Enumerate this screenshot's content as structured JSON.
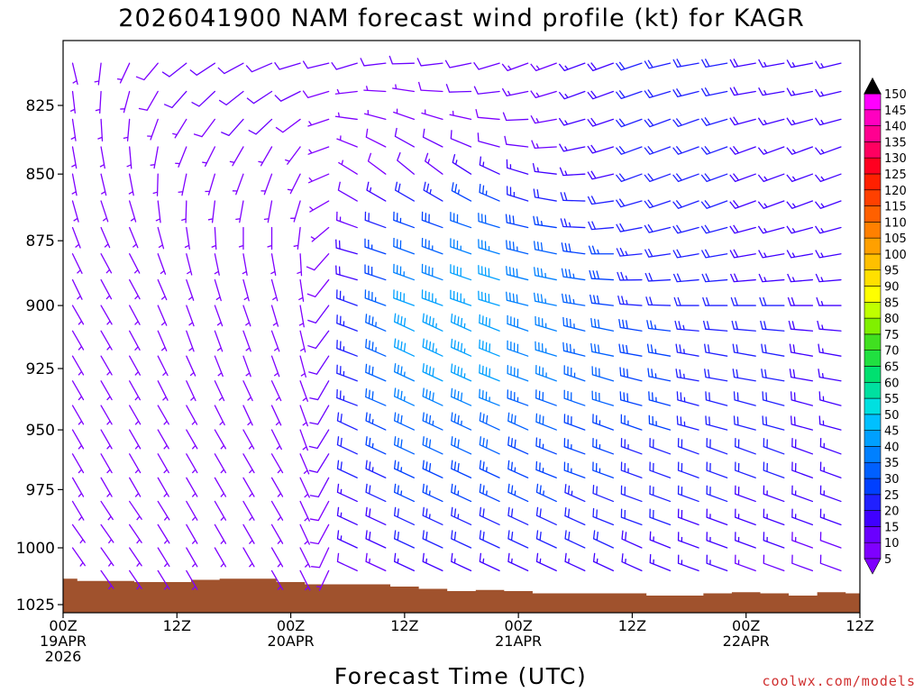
{
  "chart_data": {
    "type": "wind-barb-profile",
    "title": "2026041900 NAM forecast wind profile (kt) for KAGR",
    "xlabel": "Forecast Time (UTC)",
    "ylabel": "",
    "credit": "coolwx.com/models",
    "y_axis": {
      "unit": "hPa",
      "range": [
        1027,
        805
      ],
      "ticks": [
        825,
        850,
        875,
        900,
        925,
        950,
        975,
        1000,
        1025
      ],
      "tick_labels": [
        "825",
        "850",
        "875",
        "900",
        "925",
        "950",
        "975",
        "1000",
        "1025"
      ]
    },
    "x_axis": {
      "unit": "forecast hours",
      "range": [
        0,
        84
      ],
      "ticks": [
        {
          "hour": 0,
          "line1": "00Z",
          "line2": "19APR",
          "line3": "2026"
        },
        {
          "hour": 12,
          "line1": "12Z",
          "line2": "",
          "line3": ""
        },
        {
          "hour": 24,
          "line1": "00Z",
          "line2": "20APR",
          "line3": ""
        },
        {
          "hour": 36,
          "line1": "12Z",
          "line2": "",
          "line3": ""
        },
        {
          "hour": 48,
          "line1": "00Z",
          "line2": "21APR",
          "line3": ""
        },
        {
          "hour": 60,
          "line1": "12Z",
          "line2": "",
          "line3": ""
        },
        {
          "hour": 72,
          "line1": "00Z",
          "line2": "22APR",
          "line3": ""
        },
        {
          "hour": 84,
          "line1": "12Z",
          "line2": "",
          "line3": ""
        }
      ]
    },
    "surface_pressure": {
      "hours": [
        0,
        3,
        6,
        9,
        12,
        15,
        18,
        21,
        24,
        27,
        30,
        33,
        36,
        39,
        42,
        45,
        48,
        51,
        54,
        57,
        60,
        63,
        66,
        69,
        72,
        75,
        78,
        81,
        84
      ],
      "hpa": [
        1013.5,
        1014.5,
        1014.5,
        1015,
        1015,
        1014,
        1013.5,
        1013.5,
        1015,
        1016,
        1016,
        1016,
        1017,
        1018,
        1019,
        1018.5,
        1019,
        1020,
        1020,
        1020,
        1020,
        1021,
        1021,
        1020,
        1019.5,
        1020,
        1021,
        1019.5,
        1020
      ],
      "color": "#a0522d"
    },
    "barbs": {
      "levels_hpa": [
        810,
        820,
        830,
        840,
        850,
        860,
        870,
        880,
        890,
        900,
        910,
        920,
        930,
        940,
        950,
        960,
        970,
        980,
        990,
        1000,
        1010
      ],
      "dir_key_hours": [
        0,
        6,
        12,
        18,
        24,
        27,
        30,
        36,
        42,
        48,
        54,
        60,
        66,
        72,
        78,
        84
      ],
      "dir_key_deg": [
        [
          160,
          200,
          230,
          240,
          250,
          260,
          250,
          270,
          260,
          250,
          250,
          250,
          260,
          260,
          260,
          255
        ],
        [
          170,
          190,
          220,
          230,
          240,
          250,
          260,
          280,
          270,
          260,
          250,
          250,
          255,
          260,
          260,
          255
        ],
        [
          170,
          180,
          210,
          220,
          230,
          240,
          275,
          290,
          285,
          270,
          255,
          250,
          250,
          255,
          255,
          255
        ],
        [
          170,
          170,
          200,
          210,
          210,
          230,
          290,
          300,
          295,
          280,
          260,
          250,
          250,
          250,
          250,
          250
        ],
        [
          170,
          165,
          190,
          200,
          200,
          220,
          300,
          310,
          305,
          290,
          270,
          250,
          250,
          250,
          250,
          250
        ],
        [
          165,
          160,
          180,
          190,
          190,
          210,
          300,
          300,
          300,
          290,
          275,
          255,
          250,
          250,
          250,
          250
        ],
        [
          160,
          155,
          170,
          180,
          180,
          200,
          290,
          290,
          290,
          285,
          275,
          260,
          255,
          255,
          255,
          255
        ],
        [
          155,
          150,
          165,
          170,
          170,
          190,
          285,
          290,
          290,
          285,
          280,
          265,
          260,
          260,
          260,
          260
        ],
        [
          155,
          150,
          160,
          165,
          165,
          185,
          285,
          290,
          290,
          285,
          280,
          270,
          265,
          265,
          265,
          265
        ],
        [
          150,
          150,
          160,
          160,
          165,
          180,
          290,
          290,
          290,
          285,
          280,
          275,
          270,
          270,
          270,
          270
        ],
        [
          150,
          150,
          160,
          160,
          160,
          180,
          290,
          295,
          295,
          290,
          285,
          280,
          275,
          275,
          275,
          275
        ],
        [
          150,
          150,
          155,
          160,
          160,
          175,
          290,
          295,
          295,
          290,
          285,
          280,
          280,
          280,
          280,
          280
        ],
        [
          150,
          150,
          155,
          155,
          155,
          170,
          290,
          295,
          295,
          290,
          290,
          285,
          280,
          280,
          280,
          280
        ],
        [
          150,
          150,
          150,
          155,
          155,
          170,
          290,
          295,
          295,
          290,
          290,
          285,
          285,
          285,
          285,
          285
        ],
        [
          150,
          150,
          150,
          150,
          155,
          170,
          295,
          295,
          295,
          295,
          290,
          290,
          285,
          285,
          285,
          285
        ],
        [
          150,
          150,
          150,
          150,
          150,
          170,
          295,
          295,
          295,
          295,
          290,
          290,
          290,
          290,
          290,
          290
        ],
        [
          150,
          150,
          150,
          150,
          150,
          165,
          295,
          295,
          295,
          295,
          290,
          290,
          290,
          290,
          290,
          290
        ],
        [
          150,
          145,
          150,
          150,
          150,
          165,
          295,
          295,
          295,
          295,
          295,
          290,
          290,
          290,
          290,
          290
        ],
        [
          145,
          145,
          150,
          150,
          150,
          165,
          295,
          295,
          295,
          295,
          295,
          290,
          290,
          290,
          290,
          290
        ],
        [
          145,
          145,
          150,
          150,
          150,
          160,
          295,
          295,
          295,
          295,
          295,
          295,
          290,
          290,
          290,
          290
        ],
        [
          145,
          145,
          150,
          150,
          150,
          160,
          295,
          295,
          295,
          295,
          295,
          295,
          290,
          290,
          290,
          290
        ]
      ],
      "spd_key_hours": [
        0,
        6,
        12,
        18,
        24,
        27,
        30,
        36,
        42,
        48,
        54,
        60,
        66,
        72,
        78,
        84
      ],
      "spd_key_kt": [
        [
          5,
          5,
          10,
          10,
          10,
          10,
          10,
          10,
          10,
          12,
          15,
          20,
          20,
          20,
          15,
          15
        ],
        [
          5,
          5,
          10,
          10,
          10,
          10,
          5,
          5,
          10,
          12,
          15,
          20,
          20,
          20,
          15,
          15
        ],
        [
          5,
          5,
          5,
          10,
          10,
          5,
          5,
          5,
          5,
          10,
          15,
          20,
          20,
          20,
          15,
          15
        ],
        [
          5,
          5,
          5,
          5,
          5,
          5,
          5,
          10,
          10,
          10,
          15,
          20,
          20,
          20,
          15,
          15
        ],
        [
          5,
          5,
          5,
          5,
          5,
          5,
          5,
          10,
          15,
          15,
          15,
          20,
          20,
          20,
          15,
          15
        ],
        [
          5,
          5,
          5,
          5,
          5,
          5,
          10,
          20,
          25,
          25,
          20,
          20,
          20,
          20,
          15,
          15
        ],
        [
          5,
          5,
          5,
          5,
          5,
          5,
          10,
          25,
          30,
          30,
          25,
          20,
          20,
          20,
          15,
          15
        ],
        [
          5,
          5,
          5,
          5,
          5,
          5,
          15,
          30,
          35,
          35,
          30,
          25,
          20,
          20,
          15,
          15
        ],
        [
          5,
          5,
          5,
          5,
          5,
          5,
          15,
          35,
          40,
          40,
          35,
          25,
          20,
          20,
          15,
          15
        ],
        [
          5,
          5,
          5,
          5,
          5,
          5,
          20,
          40,
          45,
          40,
          35,
          25,
          20,
          20,
          20,
          15
        ],
        [
          5,
          5,
          5,
          5,
          5,
          5,
          20,
          40,
          45,
          40,
          35,
          30,
          25,
          20,
          20,
          15
        ],
        [
          5,
          5,
          5,
          5,
          5,
          5,
          20,
          40,
          45,
          40,
          35,
          30,
          25,
          20,
          20,
          15
        ],
        [
          5,
          5,
          5,
          5,
          5,
          5,
          20,
          35,
          45,
          40,
          35,
          30,
          25,
          20,
          20,
          15
        ],
        [
          5,
          5,
          5,
          5,
          5,
          5,
          20,
          35,
          40,
          35,
          30,
          30,
          25,
          20,
          20,
          15
        ],
        [
          5,
          5,
          5,
          5,
          5,
          5,
          20,
          30,
          35,
          30,
          30,
          25,
          25,
          20,
          20,
          15
        ],
        [
          5,
          5,
          5,
          5,
          5,
          5,
          20,
          30,
          30,
          30,
          25,
          25,
          20,
          20,
          20,
          15
        ],
        [
          5,
          5,
          5,
          5,
          5,
          5,
          20,
          25,
          30,
          25,
          25,
          25,
          20,
          20,
          20,
          15
        ],
        [
          5,
          5,
          5,
          5,
          5,
          5,
          15,
          25,
          25,
          25,
          25,
          20,
          20,
          20,
          15,
          15
        ],
        [
          5,
          5,
          5,
          5,
          5,
          5,
          15,
          20,
          25,
          20,
          20,
          20,
          20,
          15,
          15,
          15
        ],
        [
          5,
          5,
          5,
          5,
          5,
          5,
          15,
          20,
          20,
          20,
          20,
          20,
          15,
          15,
          15,
          10
        ],
        [
          5,
          5,
          5,
          5,
          5,
          5,
          10,
          15,
          15,
          15,
          15,
          15,
          15,
          15,
          10,
          10
        ]
      ]
    },
    "colorbar": {
      "labels": [
        "5",
        "10",
        "15",
        "20",
        "25",
        "30",
        "35",
        "40",
        "45",
        "50",
        "55",
        "60",
        "65",
        "70",
        "75",
        "80",
        "85",
        "90",
        "95",
        "100",
        "105",
        "110",
        "115",
        "120",
        "125",
        "130",
        "135",
        "140",
        "145",
        "150"
      ],
      "colors": [
        "#7f00ff",
        "#6a00ff",
        "#4000ff",
        "#2020ff",
        "#0040ff",
        "#0060ff",
        "#0080ff",
        "#00a0ff",
        "#00c0ff",
        "#00e0e0",
        "#00e0a0",
        "#00e070",
        "#20e040",
        "#40e020",
        "#80f000",
        "#c0ff00",
        "#ffff00",
        "#ffe000",
        "#ffc000",
        "#ffa000",
        "#ff8000",
        "#ff6000",
        "#ff4000",
        "#ff2000",
        "#ff0020",
        "#ff0060",
        "#ff0090",
        "#ff00c0",
        "#ff00ff"
      ]
    }
  }
}
